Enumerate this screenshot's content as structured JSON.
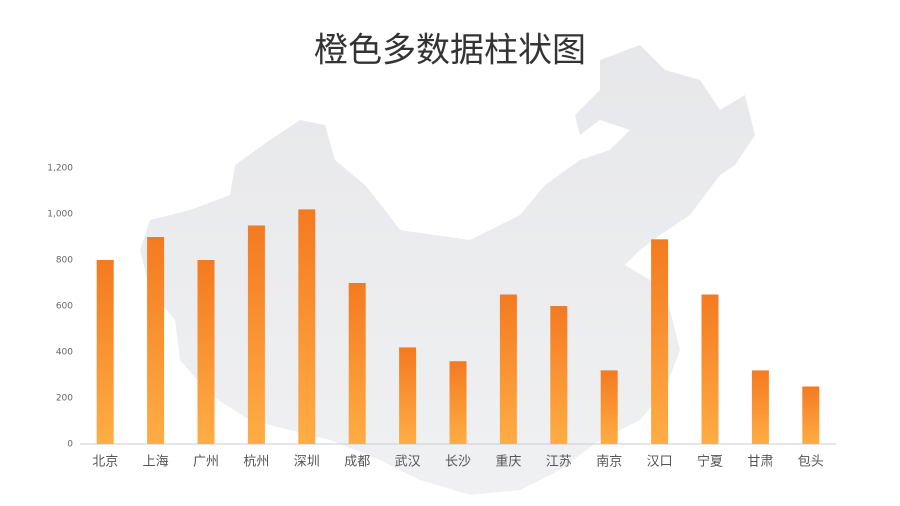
{
  "chart_data": {
    "type": "bar",
    "title": "橙色多数据柱状图",
    "categories": [
      "北京",
      "上海",
      "广州",
      "杭州",
      "深圳",
      "成都",
      "武汉",
      "长沙",
      "重庆",
      "江苏",
      "南京",
      "汉口",
      "宁夏",
      "甘肃",
      "包头"
    ],
    "values": [
      800,
      900,
      800,
      950,
      1020,
      700,
      420,
      360,
      650,
      600,
      320,
      890,
      650,
      320,
      250
    ],
    "gradient": [
      "#f47a20",
      "#ffad45"
    ],
    "ylim": [
      0,
      1200
    ],
    "yticks": [
      0,
      200,
      400,
      600,
      800,
      {
        "value": 1000,
        "label": "1,000"
      },
      {
        "value": 1200,
        "label": "1,200"
      }
    ]
  }
}
